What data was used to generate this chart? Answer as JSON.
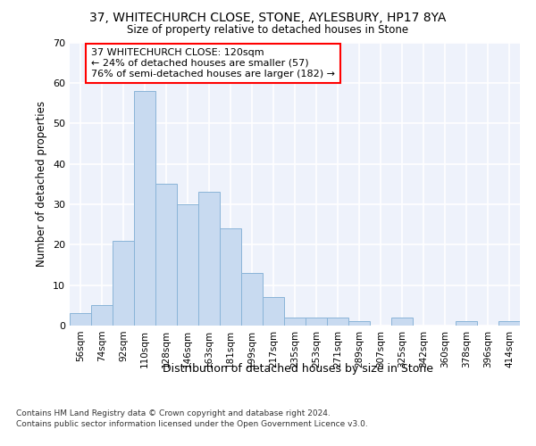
{
  "title": "37, WHITECHURCH CLOSE, STONE, AYLESBURY, HP17 8YA",
  "subtitle": "Size of property relative to detached houses in Stone",
  "xlabel": "Distribution of detached houses by size in Stone",
  "ylabel": "Number of detached properties",
  "categories": [
    "56sqm",
    "74sqm",
    "92sqm",
    "110sqm",
    "128sqm",
    "146sqm",
    "163sqm",
    "181sqm",
    "199sqm",
    "217sqm",
    "235sqm",
    "253sqm",
    "271sqm",
    "289sqm",
    "307sqm",
    "325sqm",
    "342sqm",
    "360sqm",
    "378sqm",
    "396sqm",
    "414sqm"
  ],
  "values": [
    3,
    5,
    21,
    58,
    35,
    30,
    33,
    24,
    13,
    7,
    2,
    2,
    2,
    1,
    0,
    2,
    0,
    0,
    1,
    0,
    1
  ],
  "bar_color": "#c8daf0",
  "bar_edge_color": "#8ab4d8",
  "background_color": "#eef2fb",
  "grid_color": "#ffffff",
  "annotation_text": "37 WHITECHURCH CLOSE: 120sqm\n← 24% of detached houses are smaller (57)\n76% of semi-detached houses are larger (182) →",
  "ylim": [
    0,
    70
  ],
  "yticks": [
    0,
    10,
    20,
    30,
    40,
    50,
    60,
    70
  ],
  "footer_line1": "Contains HM Land Registry data © Crown copyright and database right 2024.",
  "footer_line2": "Contains public sector information licensed under the Open Government Licence v3.0."
}
